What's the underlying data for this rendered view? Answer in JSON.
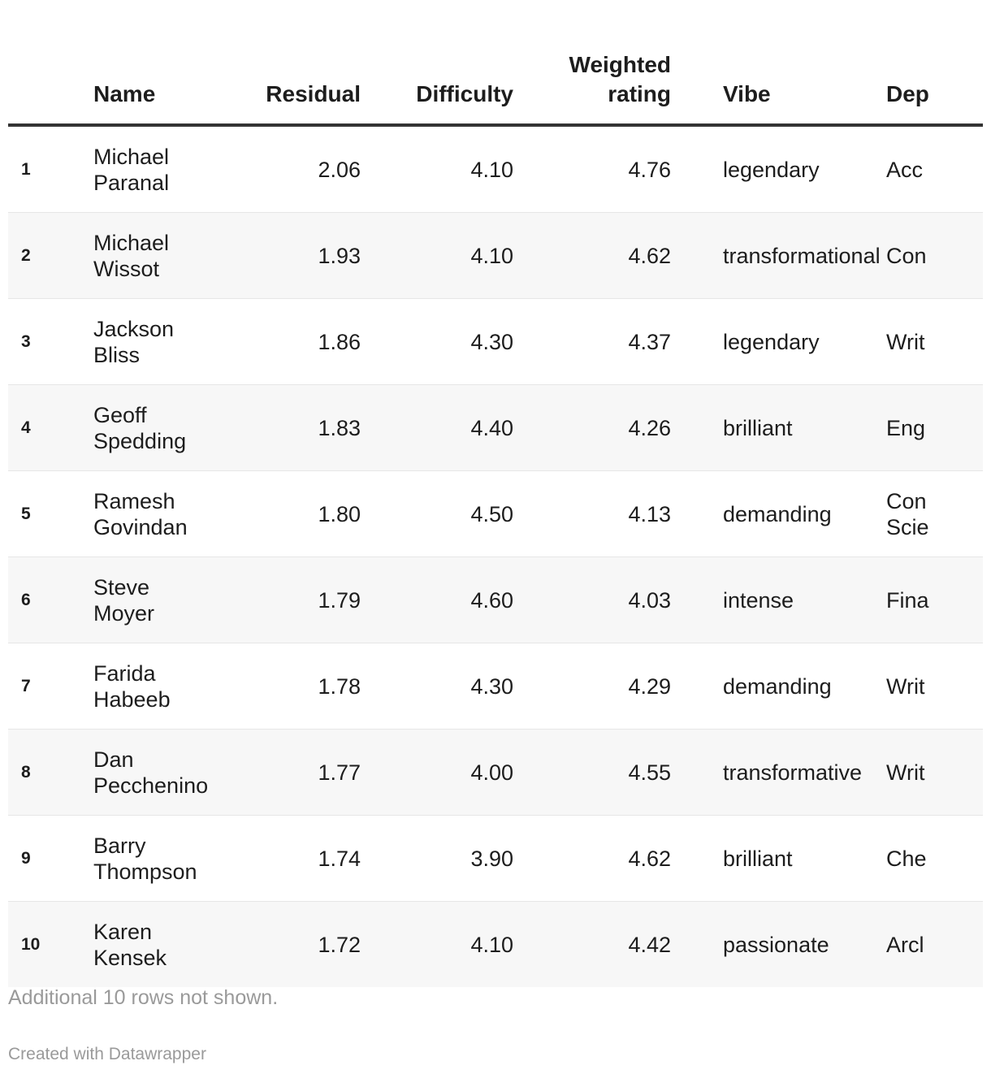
{
  "chart_data": {
    "type": "table",
    "columns": [
      "",
      "Name",
      "Residual",
      "Difficulty",
      "Weighted rating",
      "Vibe",
      "Dep"
    ],
    "rows": [
      {
        "rank": "1",
        "name": "Michael Paranal",
        "residual": "2.06",
        "difficulty": "4.10",
        "weighted_rating": "4.76",
        "vibe": "legendary",
        "department": "Acc"
      },
      {
        "rank": "2",
        "name": "Michael Wissot",
        "residual": "1.93",
        "difficulty": "4.10",
        "weighted_rating": "4.62",
        "vibe": "transformational",
        "department": "Con"
      },
      {
        "rank": "3",
        "name": "Jackson Bliss",
        "residual": "1.86",
        "difficulty": "4.30",
        "weighted_rating": "4.37",
        "vibe": "legendary",
        "department": "Writ"
      },
      {
        "rank": "4",
        "name": "Geoff Spedding",
        "residual": "1.83",
        "difficulty": "4.40",
        "weighted_rating": "4.26",
        "vibe": "brilliant",
        "department": "Eng"
      },
      {
        "rank": "5",
        "name": "Ramesh Govindan",
        "residual": "1.80",
        "difficulty": "4.50",
        "weighted_rating": "4.13",
        "vibe": "demanding",
        "department": "Con Scie"
      },
      {
        "rank": "6",
        "name": "Steve Moyer",
        "residual": "1.79",
        "difficulty": "4.60",
        "weighted_rating": "4.03",
        "vibe": "intense",
        "department": "Fina"
      },
      {
        "rank": "7",
        "name": "Farida Habeeb",
        "residual": "1.78",
        "difficulty": "4.30",
        "weighted_rating": "4.29",
        "vibe": "demanding",
        "department": "Writ"
      },
      {
        "rank": "8",
        "name": "Dan Pecchenino",
        "residual": "1.77",
        "difficulty": "4.00",
        "weighted_rating": "4.55",
        "vibe": "transformative",
        "department": "Writ"
      },
      {
        "rank": "9",
        "name": "Barry Thompson",
        "residual": "1.74",
        "difficulty": "3.90",
        "weighted_rating": "4.62",
        "vibe": "brilliant",
        "department": "Che"
      },
      {
        "rank": "10",
        "name": "Karen Kensek",
        "residual": "1.72",
        "difficulty": "4.10",
        "weighted_rating": "4.42",
        "vibe": "passionate",
        "department": "Arcl"
      }
    ],
    "notes": "Additional 10 rows not shown.",
    "credit": "Created with Datawrapper"
  }
}
